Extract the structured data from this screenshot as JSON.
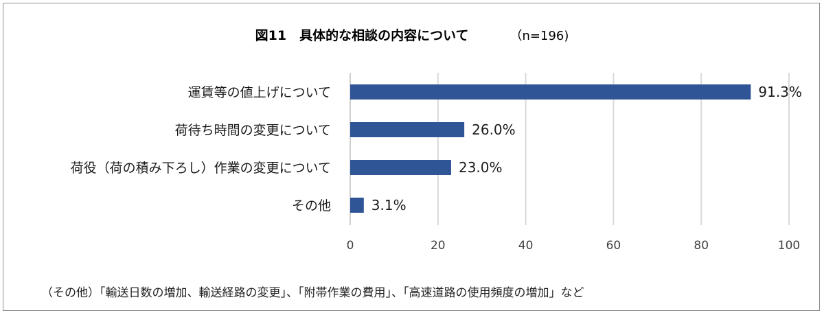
{
  "title": "図11　具体的な相談の内容について",
  "sample_size": "（n=196)",
  "chart_data": {
    "type": "bar",
    "orientation": "horizontal",
    "categories": [
      "運賃等の値上げについて",
      "荷待ち時間の変更について",
      "荷役（荷の積み下ろし）作業の変更について",
      "その他"
    ],
    "values": [
      91.3,
      26.0,
      23.0,
      3.1
    ],
    "value_labels": [
      "91.3%",
      "26.0%",
      "23.0%",
      "3.1%"
    ],
    "xlim": [
      0,
      100
    ],
    "x_ticks": [
      0,
      20,
      40,
      60,
      80,
      100
    ],
    "grid": true,
    "bar_color": "#2f5597",
    "grid_color": "#d9d9d9"
  },
  "footnote": "（その他）「輸送日数の増加、輸送経路の変更」、「附帯作業の費用」、「高速道路の使用頻度の増加」など"
}
